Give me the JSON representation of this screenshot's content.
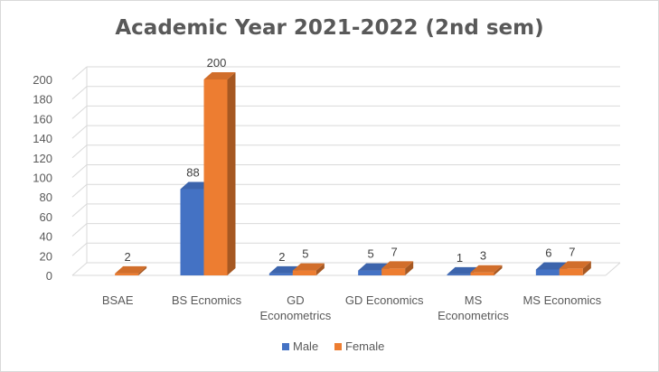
{
  "chart_data": {
    "type": "bar",
    "title": "Academic Year 2021-2022 (2nd sem)",
    "categories": [
      [
        "BSAE"
      ],
      [
        "BS Ecnomics"
      ],
      [
        "GD",
        "Econometrics"
      ],
      [
        "GD Economics"
      ],
      [
        "MS",
        "Econometrics"
      ],
      [
        "MS Economics"
      ]
    ],
    "series": [
      {
        "name": "Male",
        "values": [
          null,
          88,
          2,
          5,
          1,
          6
        ],
        "color": "#4472C4"
      },
      {
        "name": "Female",
        "values": [
          2,
          200,
          5,
          7,
          3,
          7
        ],
        "color": "#ED7D31"
      }
    ],
    "ylim": [
      0,
      200
    ],
    "y_ticks": [
      0,
      20,
      40,
      60,
      80,
      100,
      120,
      140,
      160,
      180,
      200
    ],
    "grid": true,
    "legend_position": "bottom",
    "style": "3d-clustered-column"
  }
}
